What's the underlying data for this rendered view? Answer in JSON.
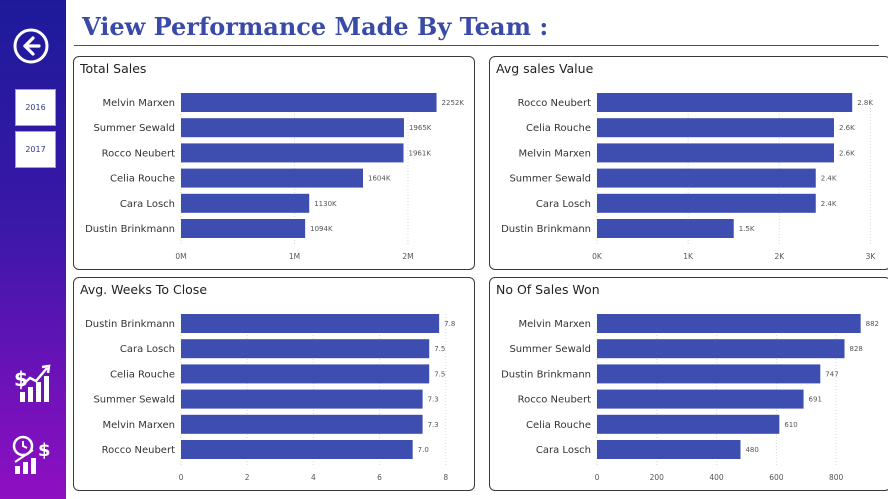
{
  "page": {
    "title": "View Performance Made By Team :"
  },
  "sidebar": {
    "back_icon": "arrow-left-circle-icon",
    "years": [
      "2016",
      "2017"
    ],
    "nav_icons": [
      "sales-chart-icon",
      "time-money-icon"
    ]
  },
  "colors": {
    "bar": "#3d4db0",
    "sidebar_top": "#1d1a9a",
    "sidebar_bottom": "#8f0fc2",
    "title": "#3a4aa8"
  },
  "chart_data": [
    {
      "type": "bar",
      "orientation": "horizontal",
      "title": "Total Sales",
      "categories": [
        "Melvin Marxen",
        "Summer Sewald",
        "Rocco Neubert",
        "Celia Rouche",
        "Cara Losch",
        "Dustin Brinkmann"
      ],
      "values": [
        2252,
        1965,
        1961,
        1604,
        1130,
        1094
      ],
      "data_labels": [
        "2252K",
        "1965K",
        "1961K",
        "1604K",
        "1130K",
        "1094K"
      ],
      "xticks": [
        {
          "v": 0,
          "label": "0M"
        },
        {
          "v": 1000,
          "label": "1M"
        },
        {
          "v": 2000,
          "label": "2M"
        }
      ],
      "xlim": [
        0,
        2450
      ]
    },
    {
      "type": "bar",
      "orientation": "horizontal",
      "title": "Avg sales Value",
      "categories": [
        "Rocco Neubert",
        "Celia Rouche",
        "Melvin Marxen",
        "Summer Sewald",
        "Cara Losch",
        "Dustin Brinkmann"
      ],
      "values": [
        2.8,
        2.6,
        2.6,
        2.4,
        2.4,
        1.5
      ],
      "data_labels": [
        "2.8K",
        "2.6K",
        "2.6K",
        "2.4K",
        "2.4K",
        "1.5K"
      ],
      "xticks": [
        {
          "v": 0,
          "label": "0K"
        },
        {
          "v": 1,
          "label": "1K"
        },
        {
          "v": 2,
          "label": "2K"
        },
        {
          "v": 3,
          "label": "3K"
        }
      ],
      "xlim": [
        0,
        3.05
      ]
    },
    {
      "type": "bar",
      "orientation": "horizontal",
      "title": "Avg. Weeks To Close",
      "categories": [
        "Dustin Brinkmann",
        "Cara Losch",
        "Celia Rouche",
        "Summer Sewald",
        "Melvin Marxen",
        "Rocco Neubert"
      ],
      "values": [
        7.8,
        7.5,
        7.5,
        7.3,
        7.3,
        7.0
      ],
      "data_labels": [
        "7.8",
        "7.5",
        "7.5",
        "7.3",
        "7.3",
        "7.0"
      ],
      "xticks": [
        {
          "v": 0,
          "label": "0"
        },
        {
          "v": 2,
          "label": "2"
        },
        {
          "v": 4,
          "label": "4"
        },
        {
          "v": 6,
          "label": "6"
        },
        {
          "v": 8,
          "label": "8"
        }
      ],
      "xlim": [
        0,
        8.4
      ]
    },
    {
      "type": "bar",
      "orientation": "horizontal",
      "title": "No Of Sales Won",
      "categories": [
        "Melvin Marxen",
        "Summer Sewald",
        "Dustin Brinkmann",
        "Rocco Neubert",
        "Celia Rouche",
        "Cara Losch"
      ],
      "values": [
        882,
        828,
        747,
        691,
        610,
        480
      ],
      "data_labels": [
        "882",
        "828",
        "747",
        "691",
        "610",
        "480"
      ],
      "xticks": [
        {
          "v": 0,
          "label": "0"
        },
        {
          "v": 200,
          "label": "200"
        },
        {
          "v": 400,
          "label": "400"
        },
        {
          "v": 600,
          "label": "600"
        },
        {
          "v": 800,
          "label": "800"
        }
      ],
      "xlim": [
        0,
        930
      ]
    }
  ]
}
